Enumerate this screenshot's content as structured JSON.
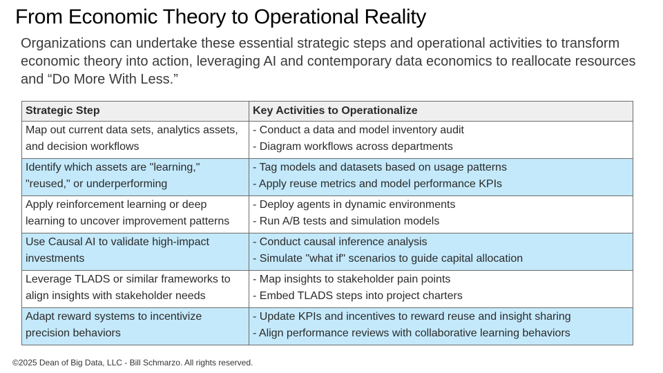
{
  "title": "From Economic Theory to Operational Reality",
  "subtitle": "Organizations can undertake these essential strategic steps and operational activities to transform economic theory into action, leveraging AI and contemporary data economics to reallocate resources and “Do More With Less.”",
  "table": {
    "headers": [
      "Strategic Step",
      "Key Activities to Operationalize"
    ],
    "rows": [
      {
        "step": "Map out current data sets, analytics assets, and decision workflows",
        "activities": [
          "- Conduct a data and model inventory audit",
          "- Diagram workflows across departments"
        ]
      },
      {
        "step": "Identify which assets are \"learning,\" \"reused,\" or underperforming",
        "activities": [
          "- Tag models and datasets based on usage patterns",
          "- Apply reuse metrics and model performance KPIs"
        ]
      },
      {
        "step": "Apply reinforcement learning or deep learning to uncover improvement patterns",
        "activities": [
          "- Deploy agents in dynamic environments",
          "- Run A/B tests and simulation models"
        ]
      },
      {
        "step": "Use Causal AI to validate high-impact investments",
        "activities": [
          "- Conduct causal inference analysis",
          "- Simulate \"what if\" scenarios to guide capital allocation"
        ]
      },
      {
        "step": "Leverage TLADS or similar frameworks to align insights with stakeholder needs",
        "activities": [
          "- Map insights to stakeholder pain points",
          "- Embed TLADS steps into project charters"
        ]
      },
      {
        "step": "Adapt reward systems to incentivize precision behaviors",
        "activities": [
          "- Update KPIs and incentives to reward reuse and insight sharing",
          "- Align performance reviews with collaborative learning behaviors"
        ]
      }
    ]
  },
  "footer": "©2025 Dean of Big Data, LLC - Bill Schmarzo. All rights reserved.",
  "colors": {
    "header_bg": "#efefef",
    "highlight_row_bg": "#c4e9fb",
    "border": "#6b6b6b"
  }
}
